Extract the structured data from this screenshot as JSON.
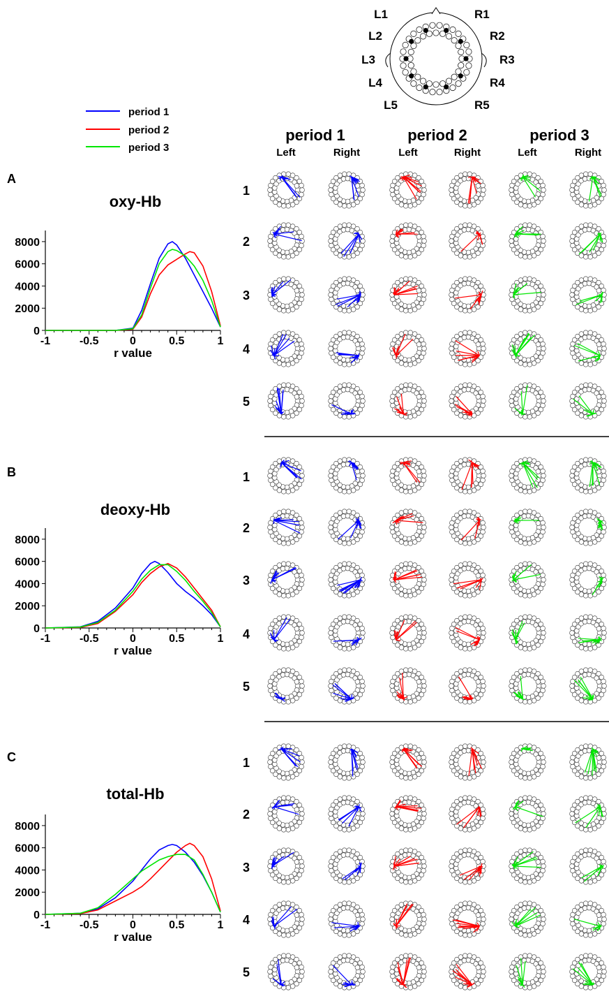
{
  "legend": [
    {
      "label": "period 1",
      "color": "#0000ff"
    },
    {
      "label": "period 2",
      "color": "#ff0000"
    },
    {
      "label": "period 3",
      "color": "#00e600"
    }
  ],
  "head_map": {
    "left_labels": [
      "L1",
      "L2",
      "L3",
      "L4",
      "L5"
    ],
    "right_labels": [
      "R1",
      "R2",
      "R3",
      "R4",
      "R5"
    ]
  },
  "column_headers": {
    "periods": [
      "period 1",
      "period 2",
      "period 3"
    ],
    "sides": [
      "Left",
      "Right"
    ]
  },
  "row_labels": [
    "1",
    "2",
    "3",
    "4",
    "5"
  ],
  "panels": [
    {
      "letter": "A",
      "title": "oxy-Hb"
    },
    {
      "letter": "B",
      "title": "deoxy-Hb"
    },
    {
      "letter": "C",
      "title": "total-Hb"
    }
  ],
  "chart_data": [
    {
      "type": "line",
      "title": "oxy-Hb",
      "xlabel": "r value",
      "ylabel": "",
      "xlim": [
        -1,
        1
      ],
      "ylim": [
        0,
        9000
      ],
      "xticks": [
        "-1",
        "-0.5",
        "0",
        "0.5",
        "1"
      ],
      "yticks": [
        "0",
        "2000",
        "4000",
        "6000",
        "8000"
      ],
      "series": [
        {
          "name": "period 1",
          "color": "#0000ff",
          "x": [
            -1,
            -0.2,
            0,
            0.1,
            0.2,
            0.3,
            0.4,
            0.45,
            0.5,
            0.6,
            0.7,
            0.8,
            0.9,
            1.0
          ],
          "y": [
            0,
            0,
            200,
            1800,
            4200,
            6500,
            7800,
            8000,
            7700,
            6500,
            5000,
            3500,
            2000,
            300
          ]
        },
        {
          "name": "period 2",
          "color": "#ff0000",
          "x": [
            -1,
            -0.2,
            0,
            0.1,
            0.2,
            0.3,
            0.4,
            0.5,
            0.6,
            0.65,
            0.7,
            0.8,
            0.9,
            1.0
          ],
          "y": [
            0,
            0,
            100,
            1200,
            3300,
            5000,
            5900,
            6400,
            6900,
            7100,
            7000,
            5800,
            3500,
            400
          ]
        },
        {
          "name": "period 3",
          "color": "#00e600",
          "x": [
            -1,
            -0.2,
            0,
            0.1,
            0.2,
            0.3,
            0.4,
            0.45,
            0.5,
            0.6,
            0.7,
            0.8,
            0.9,
            1.0
          ],
          "y": [
            0,
            0,
            150,
            1400,
            3800,
            6000,
            7100,
            7300,
            7200,
            6700,
            5800,
            4500,
            2700,
            300
          ]
        }
      ]
    },
    {
      "type": "line",
      "title": "deoxy-Hb",
      "xlabel": "r value",
      "ylabel": "",
      "xlim": [
        -1,
        1
      ],
      "ylim": [
        0,
        9000
      ],
      "xticks": [
        "-1",
        "-0.5",
        "0",
        "0.5",
        "1"
      ],
      "yticks": [
        "0",
        "2000",
        "4000",
        "6000",
        "8000"
      ],
      "series": [
        {
          "name": "period 1",
          "color": "#0000ff",
          "x": [
            -1,
            -0.6,
            -0.4,
            -0.2,
            0,
            0.1,
            0.2,
            0.25,
            0.3,
            0.4,
            0.5,
            0.6,
            0.7,
            0.8,
            0.9,
            1.0
          ],
          "y": [
            0,
            100,
            600,
            1800,
            3600,
            4900,
            5800,
            6000,
            5800,
            5000,
            4000,
            3300,
            2700,
            2000,
            1200,
            100
          ]
        },
        {
          "name": "period 2",
          "color": "#ff0000",
          "x": [
            -1,
            -0.6,
            -0.4,
            -0.2,
            0,
            0.1,
            0.2,
            0.3,
            0.4,
            0.5,
            0.6,
            0.7,
            0.8,
            0.9,
            1.0
          ],
          "y": [
            0,
            50,
            400,
            1500,
            3000,
            4100,
            4900,
            5500,
            5800,
            5400,
            4600,
            3600,
            2600,
            1600,
            100
          ]
        },
        {
          "name": "period 3",
          "color": "#00e600",
          "x": [
            -1,
            -0.6,
            -0.4,
            -0.2,
            0,
            0.1,
            0.2,
            0.3,
            0.4,
            0.5,
            0.6,
            0.7,
            0.8,
            0.9,
            1.0
          ],
          "y": [
            0,
            80,
            500,
            1600,
            3300,
            4400,
            5200,
            5700,
            5700,
            5100,
            4300,
            3300,
            2400,
            1400,
            100
          ]
        }
      ]
    },
    {
      "type": "line",
      "title": "total-Hb",
      "xlabel": "r value",
      "ylabel": "",
      "xlim": [
        -1,
        1
      ],
      "ylim": [
        0,
        9000
      ],
      "xticks": [
        "-1",
        "-0.5",
        "0",
        "0.5",
        "1"
      ],
      "yticks": [
        "0",
        "2000",
        "4000",
        "6000",
        "8000"
      ],
      "series": [
        {
          "name": "period 1",
          "color": "#0000ff",
          "x": [
            -1,
            -0.6,
            -0.4,
            -0.2,
            0,
            0.1,
            0.2,
            0.3,
            0.4,
            0.45,
            0.5,
            0.6,
            0.7,
            0.8,
            0.9,
            1.0
          ],
          "y": [
            0,
            100,
            500,
            1500,
            3000,
            4000,
            5000,
            5800,
            6200,
            6300,
            6200,
            5600,
            4700,
            3500,
            2000,
            200
          ]
        },
        {
          "name": "period 2",
          "color": "#ff0000",
          "x": [
            -1,
            -0.6,
            -0.4,
            -0.2,
            0,
            0.1,
            0.2,
            0.3,
            0.4,
            0.5,
            0.6,
            0.65,
            0.7,
            0.8,
            0.9,
            1.0
          ],
          "y": [
            0,
            60,
            400,
            1200,
            2000,
            2500,
            3200,
            4000,
            4800,
            5600,
            6200,
            6400,
            6200,
            5200,
            3200,
            300
          ]
        },
        {
          "name": "period 3",
          "color": "#00e600",
          "x": [
            -1,
            -0.6,
            -0.4,
            -0.2,
            0,
            0.1,
            0.2,
            0.3,
            0.4,
            0.5,
            0.6,
            0.7,
            0.8,
            0.9,
            1.0
          ],
          "y": [
            0,
            100,
            600,
            1800,
            3200,
            3900,
            4400,
            4900,
            5200,
            5400,
            5400,
            4900,
            3600,
            2000,
            200
          ]
        }
      ]
    }
  ]
}
